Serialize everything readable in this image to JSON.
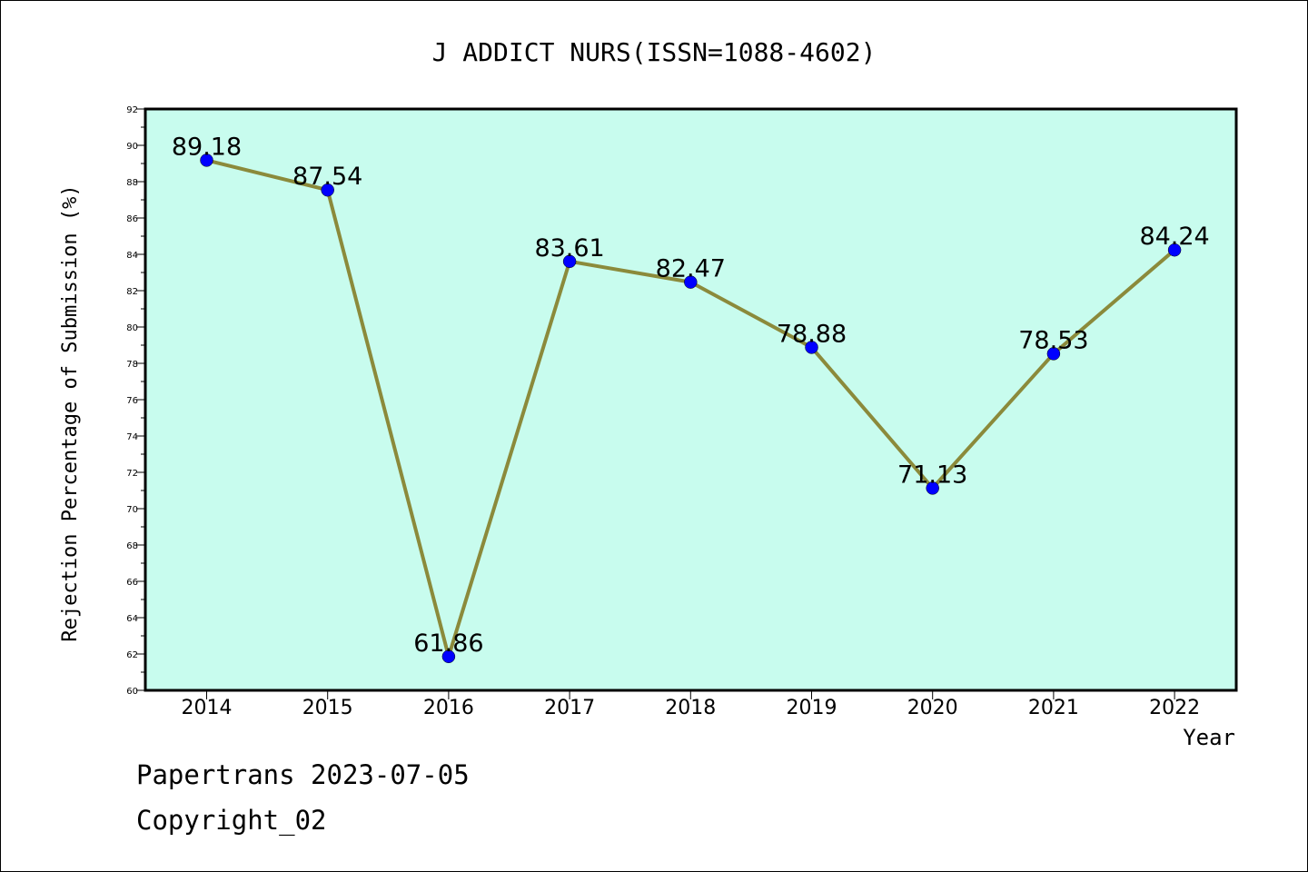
{
  "chart_data": {
    "type": "line",
    "title": "J ADDICT NURS(ISSN=1088-4602)",
    "xlabel": "Year",
    "ylabel": "Rejection Percentage of Submission (%)",
    "categories": [
      "2014",
      "2015",
      "2016",
      "2017",
      "2018",
      "2019",
      "2020",
      "2021",
      "2022"
    ],
    "values": [
      89.18,
      87.54,
      61.86,
      83.61,
      82.47,
      78.88,
      71.13,
      78.53,
      84.24
    ],
    "data_labels": [
      "89.18",
      "87.54",
      "61.86",
      "83.61",
      "82.47",
      "78.88",
      "71.13",
      "78.53",
      "84.24"
    ],
    "ylim": [
      60,
      92
    ],
    "yticks": [
      "60",
      "62",
      "64",
      "66",
      "68",
      "70",
      "72",
      "74",
      "76",
      "78",
      "80",
      "82",
      "84",
      "86",
      "88",
      "90",
      "92"
    ],
    "grid": false,
    "legend": "none"
  },
  "colors": {
    "plot_background": "#c8fcee",
    "line": "#8b8a3b",
    "marker": "#0000ff"
  },
  "footer": {
    "source": "Papertrans 2023-07-05",
    "copyright": "Copyright_02"
  }
}
